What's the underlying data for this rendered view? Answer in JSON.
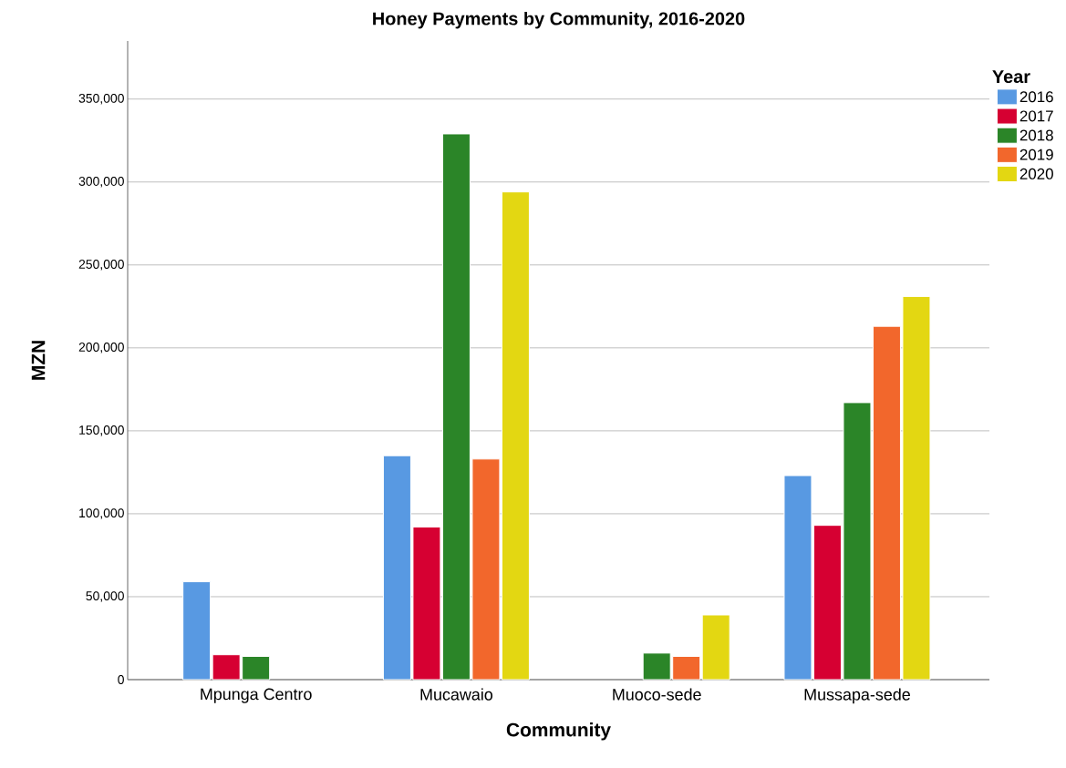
{
  "chart_data": {
    "type": "bar",
    "title": "Honey Payments by Community, 2016-2020",
    "xlabel": "Community",
    "ylabel": "MZN",
    "legend_title": "Year",
    "categories": [
      "Mpunga Centro",
      "Mucawaio",
      "Muoco-sede",
      "Mussapa-sede"
    ],
    "series": [
      {
        "name": "2016",
        "color": "#5899e2",
        "values": [
          59000,
          135000,
          null,
          123000
        ]
      },
      {
        "name": "2017",
        "color": "#d60032",
        "values": [
          15000,
          92000,
          null,
          93000
        ]
      },
      {
        "name": "2018",
        "color": "#2b8528",
        "values": [
          14000,
          329000,
          16000,
          167000
        ]
      },
      {
        "name": "2019",
        "color": "#f2672c",
        "values": [
          null,
          133000,
          14000,
          213000
        ]
      },
      {
        "name": "2020",
        "color": "#e3d712",
        "values": [
          null,
          294000,
          39000,
          231000
        ]
      }
    ],
    "ylim": [
      0,
      385000
    ],
    "yticks": [
      0,
      {
        "value": 50000,
        "label": "50,000"
      },
      {
        "value": 100000,
        "label": "100,000"
      },
      {
        "value": 150000,
        "label": "150,000"
      },
      {
        "value": 200000,
        "label": "200,000"
      },
      {
        "value": 250000,
        "label": "250,000"
      },
      {
        "value": 300000,
        "label": "300,000"
      },
      {
        "value": 350000,
        "label": "350,000"
      }
    ],
    "grid": "y",
    "legend": "top right"
  }
}
